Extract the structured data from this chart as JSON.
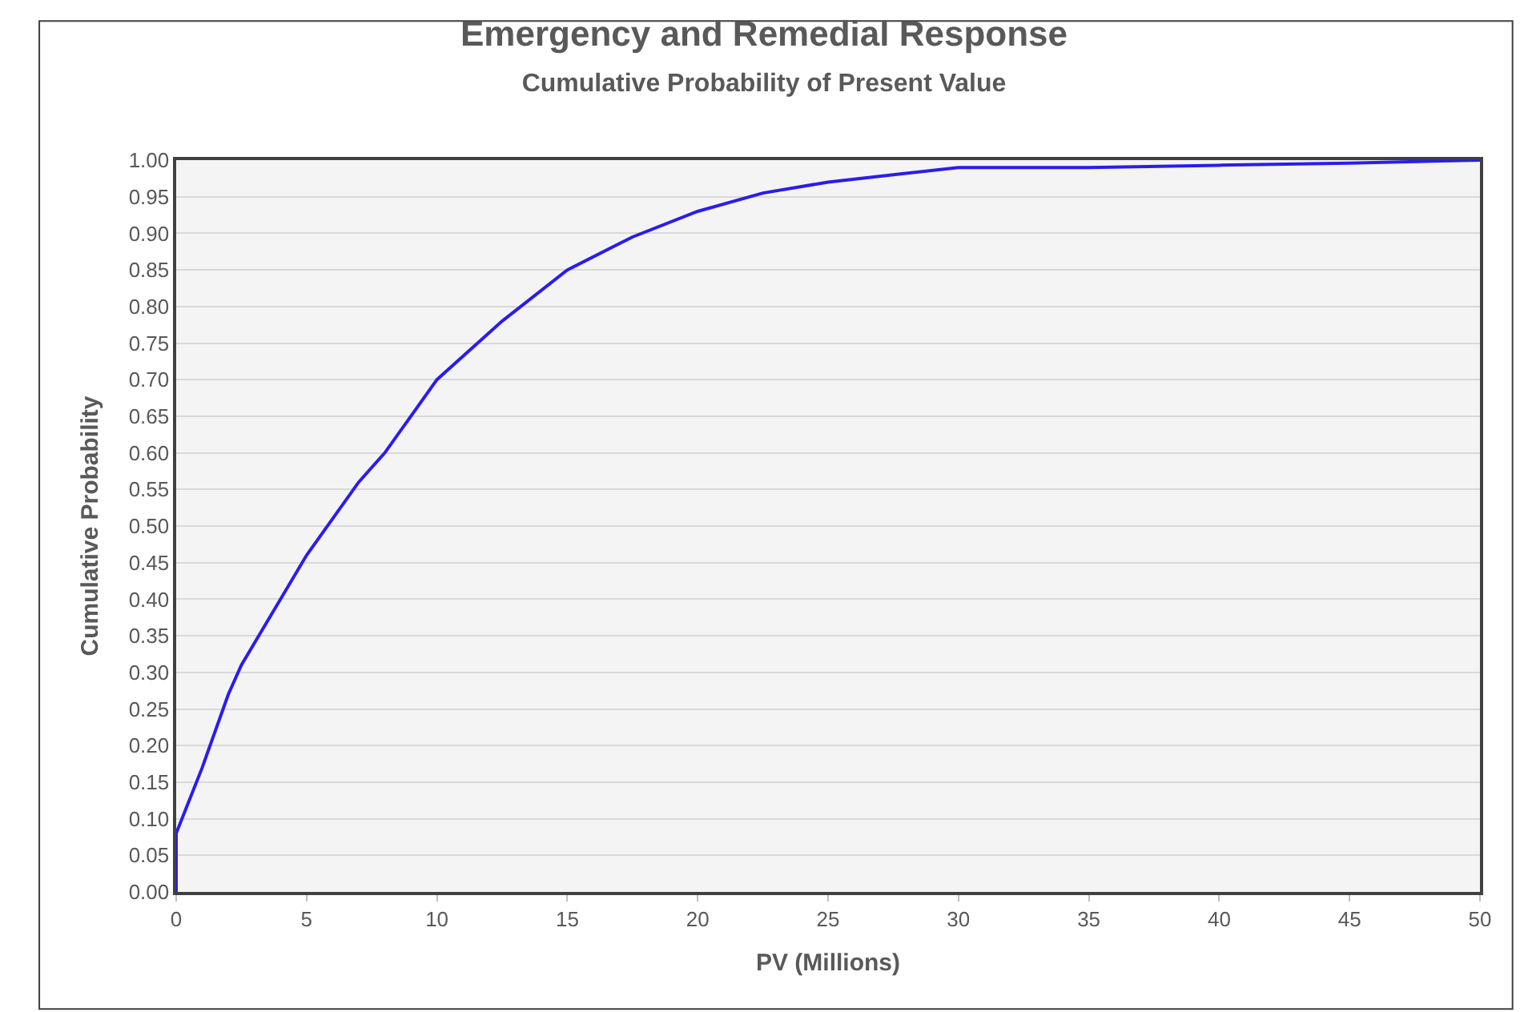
{
  "chart_data": {
    "type": "line",
    "title": "Emergency and Remedial Response",
    "subtitle": "Cumulative Probability of Present Value",
    "xlabel": "PV (Millions)",
    "ylabel": "Cumulative Probability",
    "series": [
      {
        "color": "#2a1cf0",
        "x": [
          0,
          0,
          1,
          2,
          2.5,
          3,
          4,
          5,
          6,
          7,
          8,
          10,
          12.5,
          15,
          17.5,
          20,
          22.5,
          25,
          27.5,
          30,
          35,
          40,
          45,
          50
        ],
        "values": [
          0,
          0.08,
          0.17,
          0.27,
          0.31,
          0.34,
          0.4,
          0.46,
          0.51,
          0.56,
          0.6,
          0.7,
          0.78,
          0.85,
          0.895,
          0.93,
          0.955,
          0.97,
          0.98,
          0.99,
          0.99,
          0.993,
          0.996,
          1.0
        ]
      }
    ],
    "xlim": [
      0,
      50
    ],
    "xticks": [
      0,
      5,
      10,
      15,
      20,
      25,
      30,
      35,
      40,
      45,
      50
    ],
    "ylim": [
      0,
      1
    ],
    "yticks": [
      {
        "value": 0,
        "label": "0.00"
      },
      {
        "value": 0.05,
        "label": "0.05"
      },
      {
        "value": 0.1,
        "label": "0.10"
      },
      {
        "value": 0.15,
        "label": "0.15"
      },
      {
        "value": 0.2,
        "label": "0.20"
      },
      {
        "value": 0.25,
        "label": "0.25"
      },
      {
        "value": 0.3,
        "label": "0.30"
      },
      {
        "value": 0.35,
        "label": "0.35"
      },
      {
        "value": 0.4,
        "label": "0.40"
      },
      {
        "value": 0.45,
        "label": "0.45"
      },
      {
        "value": 0.5,
        "label": "0.50"
      },
      {
        "value": 0.55,
        "label": "0.55"
      },
      {
        "value": 0.6,
        "label": "0.60"
      },
      {
        "value": 0.65,
        "label": "0.65"
      },
      {
        "value": 0.7,
        "label": "0.70"
      },
      {
        "value": 0.75,
        "label": "0.75"
      },
      {
        "value": 0.8,
        "label": "0.80"
      },
      {
        "value": 0.85,
        "label": "0.85"
      },
      {
        "value": 0.9,
        "label": "0.90"
      },
      {
        "value": 0.95,
        "label": "0.95"
      },
      {
        "value": 1,
        "label": "1.00"
      }
    ],
    "grid": "y",
    "marker": "none",
    "line_style": "solid"
  }
}
